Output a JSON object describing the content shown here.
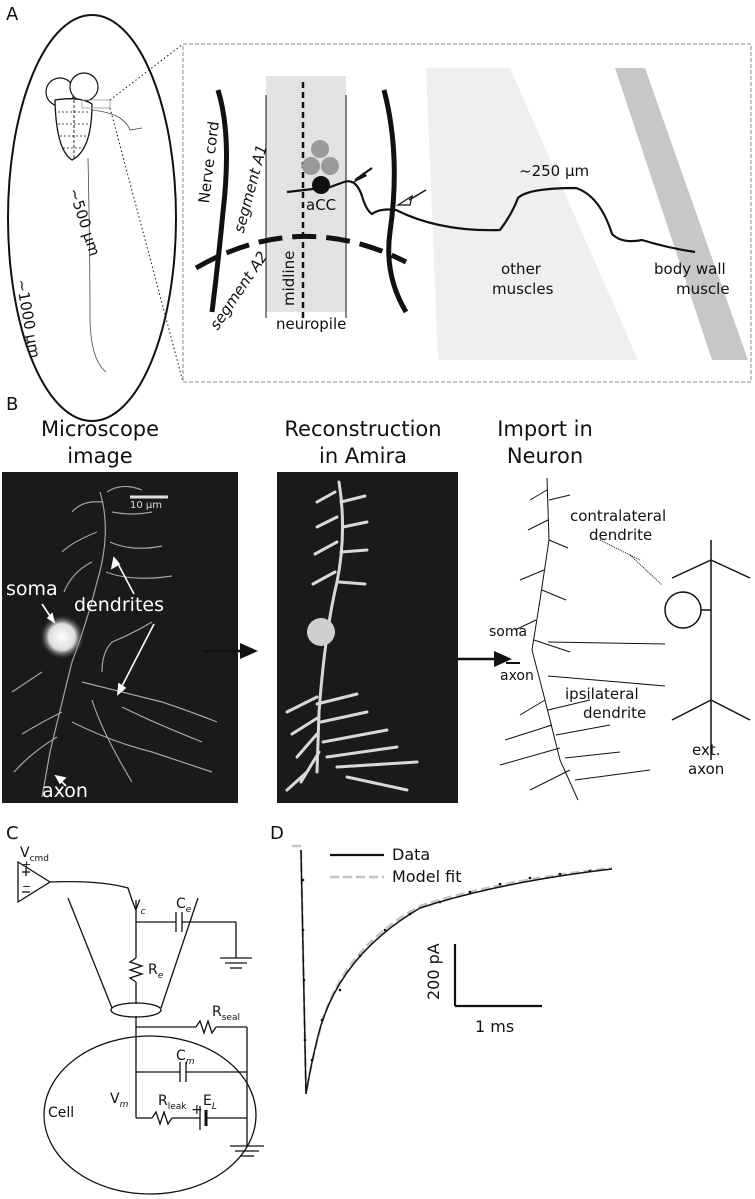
{
  "panel_a": {
    "letter": "A",
    "len_500": "~500 µm",
    "len_1000": "~1000 µm",
    "nerve_cord": "Nerve cord",
    "segment_a1": "segment A1",
    "segment_a2": "segment A2",
    "midline": "midline",
    "neuropile": "neuropile",
    "acc": "aCC",
    "len_250": "~250 µm",
    "other_muscles_1": "other",
    "other_muscles_2": "muscles",
    "body_wall_1": "body wall",
    "body_wall_2": "muscle"
  },
  "panel_b": {
    "letter": "B",
    "title_micro_1": "Microscope",
    "title_micro_2": "image",
    "title_recon_1": "Reconstruction",
    "title_recon_2": "in Amira",
    "title_import_1": "Import in",
    "title_import_2": "Neuron",
    "scale": "10 µm",
    "soma": "soma",
    "dendrites": "dendrites",
    "axon": "axon",
    "contralateral_1": "contralateral",
    "contralateral_2": "dendrite",
    "soma_small": "soma",
    "axon_small": "axon",
    "ipsilateral_1": "ipsilateral",
    "ipsilateral_2": "dendrite",
    "ext_axon_1": "ext.",
    "ext_axon_2": "axon"
  },
  "panel_c": {
    "letter": "C",
    "vcmd": "V",
    "vcmd_sub": "cmd",
    "vc": "V",
    "vc_sub": "c",
    "ce": "C",
    "ce_sub": "e",
    "re": "R",
    "re_sub": "e",
    "rseal": "R",
    "rseal_sub": "seal",
    "cm": "C",
    "cm_sub": "m",
    "vm": "V",
    "vm_sub": "m",
    "rleak": "R",
    "rleak_sub": "leak",
    "el": "E",
    "el_sub": "L",
    "cell": "Cell",
    "plus": "+",
    "minus": "−"
  },
  "panel_d": {
    "letter": "D",
    "legend_data": "Data",
    "legend_model": "Model fit",
    "scale_y": "200 pA",
    "scale_x": "1 ms",
    "colors": {
      "data": "#111111",
      "model": "#bdbdbd"
    }
  }
}
